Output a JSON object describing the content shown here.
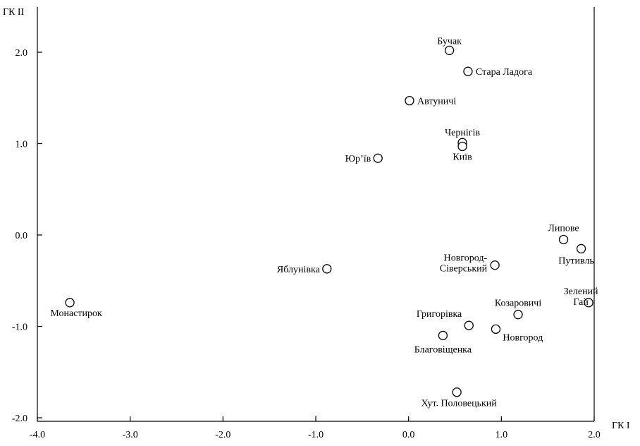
{
  "chart_data": {
    "type": "scatter",
    "xlabel": "ГК I",
    "ylabel": "ГК II",
    "xlim": [
      -4.0,
      2.0
    ],
    "ylim": [
      -2.0,
      2.35
    ],
    "x_ticks": [
      "-4.0",
      "-3.0",
      "-2.0",
      "-1.0",
      "0.0",
      "1.0",
      "2.0"
    ],
    "y_ticks": [
      "-2.0",
      "-1.0",
      "0.0",
      "1.0",
      "2.0"
    ],
    "grid": false,
    "points": [
      {
        "label": [
          "Бучак"
        ],
        "x": 0.44,
        "y": 2.02
      },
      {
        "label": [
          "Стара Ладога"
        ],
        "x": 0.64,
        "y": 1.79
      },
      {
        "label": [
          "Автуничі"
        ],
        "x": 0.01,
        "y": 1.47
      },
      {
        "label": [
          "Чернігів"
        ],
        "x": 0.58,
        "y": 1.01
      },
      {
        "label": [
          "Київ"
        ],
        "x": 0.58,
        "y": 0.97
      },
      {
        "label": [
          "Юр’їв"
        ],
        "x": -0.33,
        "y": 0.84
      },
      {
        "label": [
          "Липове"
        ],
        "x": 1.67,
        "y": -0.05
      },
      {
        "label": [
          "Путивль"
        ],
        "x": 1.86,
        "y": -0.15
      },
      {
        "label": [
          "Новгород-",
          "Сіверський"
        ],
        "x": 0.93,
        "y": -0.33
      },
      {
        "label": [
          "Яблунівка"
        ],
        "x": -0.88,
        "y": -0.37
      },
      {
        "label": [
          "Монастирок"
        ],
        "x": -3.65,
        "y": -0.74
      },
      {
        "label": [
          "Зелений",
          "Гай"
        ],
        "x": 1.94,
        "y": -0.74
      },
      {
        "label": [
          "Козаровичі"
        ],
        "x": 1.18,
        "y": -0.87
      },
      {
        "label": [
          "Григорівка"
        ],
        "x": 0.65,
        "y": -0.99
      },
      {
        "label": [
          "Новгород"
        ],
        "x": 0.94,
        "y": -1.03
      },
      {
        "label": [
          "Благовіщенка"
        ],
        "x": 0.37,
        "y": -1.1
      },
      {
        "label": [
          "Хут. Половецький"
        ],
        "x": 0.52,
        "y": -1.72
      }
    ]
  }
}
